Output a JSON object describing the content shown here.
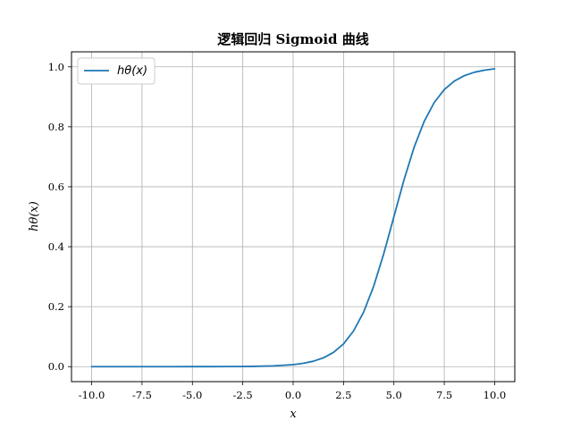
{
  "chart_data": {
    "type": "line",
    "title": "逻辑回归 Sigmoid 曲线",
    "xlabel": "x",
    "ylabel": "hθ(x)",
    "xlim": [
      -11,
      11
    ],
    "ylim": [
      -0.05,
      1.05
    ],
    "xticks": [
      -10.0,
      -7.5,
      -5.0,
      -2.5,
      0.0,
      2.5,
      5.0,
      7.5,
      10.0
    ],
    "yticks": [
      0.0,
      0.2,
      0.4,
      0.6,
      0.8,
      1.0
    ],
    "xtick_labels": [
      "-10.0",
      "-7.5",
      "-5.0",
      "-2.5",
      "0.0",
      "2.5",
      "5.0",
      "7.5",
      "10.0"
    ],
    "ytick_labels": [
      "0.0",
      "0.2",
      "0.4",
      "0.6",
      "0.8",
      "1.0"
    ],
    "grid": true,
    "legend_position": "upper-left",
    "series": [
      {
        "name": "hθ(x)",
        "color": "#1f77b4",
        "x": [
          -10,
          -9,
          -8,
          -7,
          -6,
          -5,
          -4,
          -3,
          -2,
          -1,
          0,
          0.5,
          1,
          1.5,
          2,
          2.5,
          3,
          3.5,
          4,
          4.5,
          5,
          5.5,
          6,
          6.5,
          7,
          7.5,
          8,
          8.5,
          9,
          9.5,
          10
        ],
        "y": [
          0.0,
          0.0,
          0.0,
          0.0,
          0.0,
          0.0001,
          0.0001,
          0.0003,
          0.0009,
          0.0025,
          0.0067,
          0.0111,
          0.018,
          0.0293,
          0.0474,
          0.0759,
          0.1192,
          0.1824,
          0.2689,
          0.3775,
          0.5,
          0.6225,
          0.7311,
          0.8176,
          0.8808,
          0.9241,
          0.9526,
          0.9707,
          0.982,
          0.9889,
          0.9933
        ]
      }
    ]
  }
}
